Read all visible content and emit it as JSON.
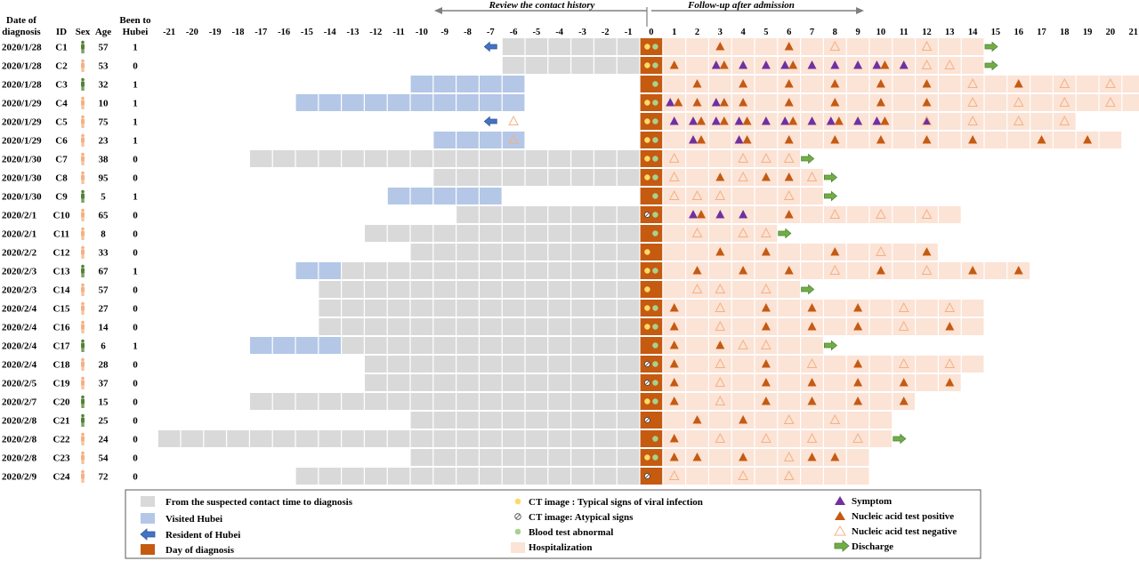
{
  "headers": {
    "date_label": "Date of diagnosis",
    "id_label": "ID",
    "sex_label": "Sex",
    "age_label": "Age",
    "hubei_label": "Been to Hubei",
    "review_title": "Review the contact history",
    "followup_title": "Follow-up after admission"
  },
  "chart_data": {
    "type": "table",
    "day_range": [
      -21,
      21
    ],
    "rows": [
      {
        "date": "2020/1/28",
        "id": "C1",
        "sex": "M",
        "age": "57",
        "hubei": "1",
        "resident": true,
        "visited": [],
        "gray": [
          -6,
          -1
        ],
        "ct": "typical",
        "blood": true,
        "hosp_end": 14,
        "symptom": [],
        "pos": [
          3,
          6
        ],
        "neg": [
          8,
          12
        ],
        "discharge": 14
      },
      {
        "date": "2020/1/28",
        "id": "C2",
        "sex": "F",
        "age": "53",
        "hubei": "0",
        "resident": false,
        "visited": [],
        "gray": [
          -6,
          -1
        ],
        "ct": "typical",
        "blood": true,
        "hosp_end": 14,
        "symptom": [
          3,
          4,
          5,
          6,
          7,
          8,
          9,
          10,
          11
        ],
        "pos": [
          1,
          3,
          6,
          10
        ],
        "neg": [
          12,
          13
        ],
        "discharge": 14
      },
      {
        "date": "2020/1/28",
        "id": "C3",
        "sex": "M",
        "age": "32",
        "hubei": "1",
        "resident": false,
        "visited": [
          -10,
          -6
        ],
        "gray": null,
        "ct": "none",
        "blood": true,
        "hosp_end": 21,
        "symptom": [],
        "pos": [
          2,
          4,
          6,
          8,
          10,
          12,
          16
        ],
        "neg": [
          14,
          18,
          20
        ],
        "discharge": null
      },
      {
        "date": "2020/1/29",
        "id": "C4",
        "sex": "F",
        "age": "10",
        "hubei": "1",
        "resident": false,
        "visited": [
          -15,
          -6
        ],
        "gray": null,
        "ct": "typical",
        "blood": true,
        "hosp_end": 21,
        "symptom": [
          1,
          3
        ],
        "pos": [
          1,
          2,
          3,
          4,
          6,
          8,
          10,
          12
        ],
        "neg": [
          14,
          16,
          18,
          20
        ],
        "discharge": null
      },
      {
        "date": "2020/1/29",
        "id": "C5",
        "sex": "F",
        "age": "75",
        "hubei": "1",
        "resident": true,
        "visited": [],
        "gray": [],
        "ct": "typical",
        "blood": true,
        "hosp_end": 18,
        "symptom": [
          1,
          2,
          3,
          4,
          5,
          6,
          7,
          8,
          9,
          10,
          12
        ],
        "pos": [
          2,
          3,
          4,
          6,
          8,
          10
        ],
        "neg": [
          -6,
          12,
          14,
          16,
          18
        ],
        "discharge": null
      },
      {
        "date": "2020/1/29",
        "id": "C6",
        "sex": "F",
        "age": "23",
        "hubei": "1",
        "resident": false,
        "visited": [
          -9,
          -6
        ],
        "gray": null,
        "ct": "typical",
        "blood": true,
        "hosp_end": 20,
        "symptom": [
          2,
          4
        ],
        "pos": [
          2,
          4,
          6,
          8,
          10,
          12,
          14,
          17,
          19
        ],
        "neg": [
          -6
        ],
        "discharge": null
      },
      {
        "date": "2020/1/30",
        "id": "C7",
        "sex": "F",
        "age": "38",
        "hubei": "0",
        "resident": false,
        "visited": [],
        "gray": [
          -17,
          -1
        ],
        "ct": "typical",
        "blood": true,
        "hosp_end": 6,
        "symptom": [],
        "pos": [],
        "neg": [
          1,
          4,
          5,
          6
        ],
        "discharge": 6
      },
      {
        "date": "2020/1/30",
        "id": "C8",
        "sex": "F",
        "age": "95",
        "hubei": "0",
        "resident": false,
        "visited": [],
        "gray": [
          -9,
          -1
        ],
        "ct": "typical",
        "blood": true,
        "hosp_end": 7,
        "symptom": [],
        "pos": [
          3,
          5,
          6
        ],
        "neg": [
          1,
          4,
          7
        ],
        "discharge": 7
      },
      {
        "date": "2020/1/30",
        "id": "C9",
        "sex": "M",
        "age": "5",
        "hubei": "1",
        "resident": false,
        "visited": [
          -11,
          -7
        ],
        "gray": null,
        "ct": "none",
        "blood": true,
        "hosp_end": 7,
        "symptom": [],
        "pos": [],
        "neg": [
          1,
          2,
          3,
          6
        ],
        "discharge": 7
      },
      {
        "date": "2020/2/1",
        "id": "C10",
        "sex": "F",
        "age": "65",
        "hubei": "0",
        "resident": false,
        "visited": [],
        "gray": [
          -8,
          -1
        ],
        "ct": "atypical",
        "blood": true,
        "hosp_end": 13,
        "symptom": [
          2,
          3,
          4
        ],
        "pos": [
          2,
          6
        ],
        "neg": [
          8,
          10,
          12
        ],
        "discharge": null
      },
      {
        "date": "2020/2/1",
        "id": "C11",
        "sex": "F",
        "age": "8",
        "hubei": "0",
        "resident": false,
        "visited": [],
        "gray": [
          -12,
          -1
        ],
        "ct": "none",
        "blood": true,
        "hosp_end": 5,
        "symptom": [],
        "pos": [],
        "neg": [
          2,
          4,
          5
        ],
        "discharge": 5
      },
      {
        "date": "2020/2/2",
        "id": "C12",
        "sex": "F",
        "age": "33",
        "hubei": "0",
        "resident": false,
        "visited": [],
        "gray": [
          -10,
          -1
        ],
        "ct": "typical",
        "blood": false,
        "hosp_end": 12,
        "symptom": [],
        "pos": [
          3,
          5,
          8,
          12
        ],
        "neg": [
          10
        ],
        "discharge": null
      },
      {
        "date": "2020/2/3",
        "id": "C13",
        "sex": "M",
        "age": "67",
        "hubei": "1",
        "resident": false,
        "visited": [
          -15,
          -14
        ],
        "gray": [
          -13,
          -1
        ],
        "ct": "typical",
        "blood": true,
        "hosp_end": 16,
        "symptom": [],
        "pos": [
          2,
          4,
          6,
          10,
          14,
          16
        ],
        "neg": [
          8,
          12
        ],
        "discharge": null
      },
      {
        "date": "2020/2/3",
        "id": "C14",
        "sex": "F",
        "age": "57",
        "hubei": "0",
        "resident": false,
        "visited": [],
        "gray": [
          -14,
          -1
        ],
        "ct": "typical",
        "blood": false,
        "hosp_end": 6,
        "symptom": [],
        "pos": [],
        "neg": [
          2,
          3,
          5
        ],
        "discharge": 6
      },
      {
        "date": "2020/2/4",
        "id": "C15",
        "sex": "F",
        "age": "27",
        "hubei": "0",
        "resident": false,
        "visited": [],
        "gray": [
          -14,
          -1
        ],
        "ct": "typical",
        "blood": true,
        "hosp_end": 14,
        "symptom": [],
        "pos": [
          1,
          5,
          7,
          9
        ],
        "neg": [
          3,
          11,
          13
        ],
        "discharge": null
      },
      {
        "date": "2020/2/4",
        "id": "C16",
        "sex": "F",
        "age": "14",
        "hubei": "0",
        "resident": false,
        "visited": [],
        "gray": [
          -14,
          -1
        ],
        "ct": "typical",
        "blood": true,
        "hosp_end": 14,
        "symptom": [],
        "pos": [
          1,
          5,
          7,
          9,
          13
        ],
        "neg": [
          3,
          11
        ],
        "discharge": null
      },
      {
        "date": "2020/2/4",
        "id": "C17",
        "sex": "M",
        "age": "6",
        "hubei": "1",
        "resident": false,
        "visited": [
          -17,
          -14
        ],
        "gray": [
          -13,
          -1
        ],
        "ct": "none",
        "blood": true,
        "hosp_end": 7,
        "symptom": [],
        "pos": [
          1,
          3
        ],
        "neg": [
          4,
          5
        ],
        "discharge": 7
      },
      {
        "date": "2020/2/4",
        "id": "C18",
        "sex": "F",
        "age": "28",
        "hubei": "0",
        "resident": false,
        "visited": [],
        "gray": [
          -12,
          -1
        ],
        "ct": "atypical",
        "blood": true,
        "hosp_end": 14,
        "symptom": [],
        "pos": [
          1,
          5,
          9
        ],
        "neg": [
          3,
          7,
          11,
          13
        ],
        "discharge": null
      },
      {
        "date": "2020/2/5",
        "id": "C19",
        "sex": "F",
        "age": "37",
        "hubei": "0",
        "resident": false,
        "visited": [],
        "gray": [
          -12,
          -1
        ],
        "ct": "atypical",
        "blood": true,
        "hosp_end": 13,
        "symptom": [],
        "pos": [
          1,
          5,
          7,
          9,
          11,
          13
        ],
        "neg": [
          3
        ],
        "discharge": null
      },
      {
        "date": "2020/2/7",
        "id": "C20",
        "sex": "M",
        "age": "15",
        "hubei": "0",
        "resident": false,
        "visited": [],
        "gray": [
          -17,
          -1
        ],
        "ct": "typical",
        "blood": true,
        "hosp_end": 11,
        "symptom": [],
        "pos": [
          1,
          5,
          7,
          9,
          11
        ],
        "neg": [
          3
        ],
        "discharge": null
      },
      {
        "date": "2020/2/8",
        "id": "C21",
        "sex": "M",
        "age": "25",
        "hubei": "0",
        "resident": false,
        "visited": [],
        "gray": [
          -10,
          -1
        ],
        "ct": "atypical",
        "blood": false,
        "hosp_end": 10,
        "symptom": [],
        "pos": [
          2,
          4
        ],
        "neg": [
          6,
          8
        ],
        "discharge": null
      },
      {
        "date": "2020/2/8",
        "id": "C22",
        "sex": "F",
        "age": "24",
        "hubei": "0",
        "resident": false,
        "visited": [],
        "gray": [
          -21,
          -1
        ],
        "ct": "none",
        "blood": true,
        "hosp_end": 10,
        "symptom": [],
        "pos": [
          1
        ],
        "neg": [
          3,
          5,
          7,
          9
        ],
        "discharge": 10
      },
      {
        "date": "2020/2/8",
        "id": "C23",
        "sex": "F",
        "age": "54",
        "hubei": "0",
        "resident": false,
        "visited": [],
        "gray": [
          -10,
          -1
        ],
        "ct": "typical",
        "blood": true,
        "hosp_end": 9,
        "symptom": [],
        "pos": [
          1,
          2,
          4,
          7,
          8
        ],
        "neg": [
          6
        ],
        "discharge": null
      },
      {
        "date": "2020/2/9",
        "id": "C24",
        "sex": "F",
        "age": "72",
        "hubei": "0",
        "resident": false,
        "visited": [],
        "gray": [
          -15,
          -1
        ],
        "ct": "atypical",
        "blood": false,
        "hosp_end": 9,
        "symptom": [],
        "pos": [],
        "neg": [
          1,
          4,
          6
        ],
        "discharge": null
      }
    ]
  },
  "legend": {
    "gray": "From the suspected contact time to diagnosis",
    "visited": "Visited Hubei",
    "resident": "Resident of Hubei",
    "diagnosis": "Day of diagnosis",
    "ct_typical": "CT image : Typical signs of viral infection",
    "ct_atypical": "CT image: Atypical signs",
    "blood": "Blood test abnormal",
    "hosp": "Hospitalization",
    "symptom": "Symptom",
    "pos": "Nucleic acid test positive",
    "neg": "Nucleic acid test negative",
    "discharge": "Discharge"
  },
  "colors": {
    "gray": "#d9d9d9",
    "visited": "#b4c7e7",
    "diagnosis": "#c55a11",
    "hosp": "#fbe3d6",
    "symptom": "#7030a0",
    "pos": "#c55a11",
    "neg": "#f4b183",
    "ct_typical": "#ffd966",
    "blood": "#a9d18e",
    "arrow_blue": "#2f5597",
    "arrow_green": "#70ad47",
    "male": "#548235",
    "female": "#f4b183"
  }
}
